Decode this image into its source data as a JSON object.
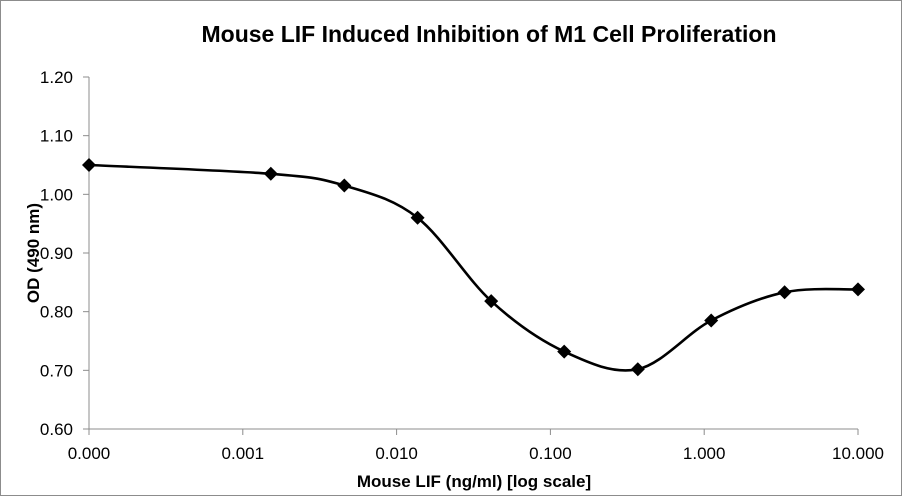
{
  "chart_data": {
    "type": "line",
    "title": "Mouse LIF Induced Inhibition of M1 Cell Proliferation",
    "xlabel": "Mouse LIF (ng/ml) [log scale]",
    "ylabel": "OD (490 nm)",
    "x_scale": "log",
    "xlim": [
      0.0001,
      10
    ],
    "ylim": [
      0.6,
      1.2
    ],
    "x_ticks": [
      {
        "value": 0.0001,
        "label": "0.000"
      },
      {
        "value": 0.001,
        "label": "0.001"
      },
      {
        "value": 0.01,
        "label": "0.010"
      },
      {
        "value": 0.1,
        "label": "0.100"
      },
      {
        "value": 1,
        "label": "1.000"
      },
      {
        "value": 10,
        "label": "10.000"
      }
    ],
    "y_ticks": [
      {
        "value": 0.6,
        "label": "0.60"
      },
      {
        "value": 0.7,
        "label": "0.70"
      },
      {
        "value": 0.8,
        "label": "0.80"
      },
      {
        "value": 0.9,
        "label": "0.90"
      },
      {
        "value": 1.0,
        "label": "1.00"
      },
      {
        "value": 1.1,
        "label": "1.10"
      },
      {
        "value": 1.2,
        "label": "1.20"
      }
    ],
    "grid": false,
    "legend": "none",
    "series": [
      {
        "marker": "diamond",
        "color": "#000000",
        "smooth": true,
        "x": [
          0.0001,
          0.00152,
          0.00457,
          0.0137,
          0.0412,
          0.123,
          0.37,
          1.11,
          3.33,
          10
        ],
        "y": [
          1.05,
          1.035,
          1.015,
          0.96,
          0.818,
          0.732,
          0.702,
          0.785,
          0.833,
          0.838
        ]
      }
    ]
  }
}
